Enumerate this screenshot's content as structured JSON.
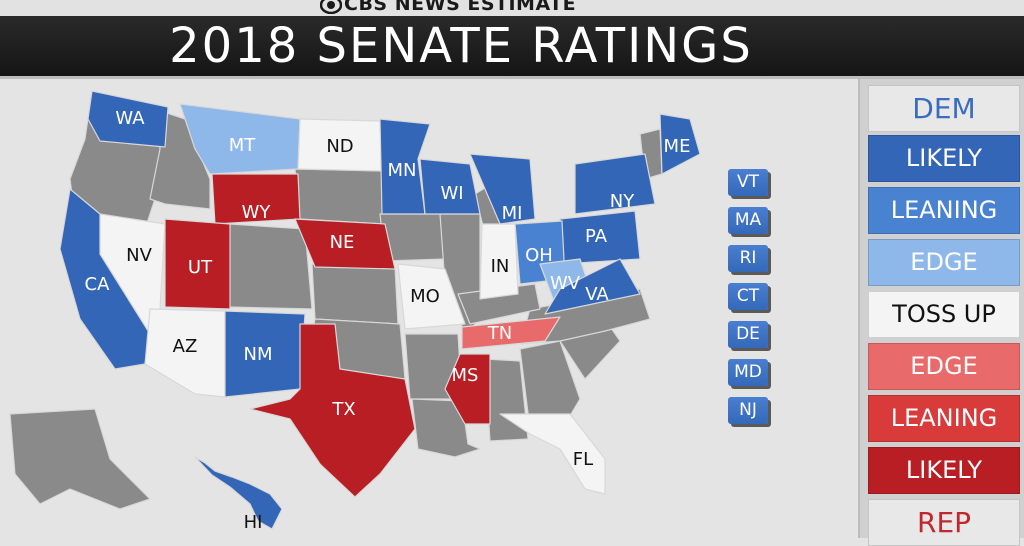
{
  "header": {
    "brand": "CBS NEWS ESTIMATE",
    "brand_icon": "cbs-eye-icon",
    "title": "2018 SENATE RATINGS"
  },
  "colors": {
    "dem_likely": "#3466b8",
    "dem_leaning": "#4a82d2",
    "dem_edge": "#8fb8ea",
    "toss_up": "#f4f4f4",
    "rep_edge": "#e86a6a",
    "rep_leaning": "#d93a3a",
    "rep_likely": "#b81e24",
    "no_race": "#8a8a8a",
    "dem_text": "#3a6cc0",
    "rep_text": "#c0282d"
  },
  "legend": {
    "dem_label": "DEM",
    "rep_label": "REP",
    "items": [
      {
        "label": "LIKELY",
        "rating": "dem_likely"
      },
      {
        "label": "LEANING",
        "rating": "dem_leaning"
      },
      {
        "label": "EDGE",
        "rating": "dem_edge"
      },
      {
        "label": "TOSS UP",
        "rating": "toss_up"
      },
      {
        "label": "EDGE",
        "rating": "rep_edge"
      },
      {
        "label": "LEANING",
        "rating": "rep_leaning"
      },
      {
        "label": "LIKELY",
        "rating": "rep_likely"
      }
    ]
  },
  "states": [
    {
      "abbr": "WA",
      "rating": "dem_likely"
    },
    {
      "abbr": "MT",
      "rating": "dem_edge"
    },
    {
      "abbr": "ND",
      "rating": "toss_up"
    },
    {
      "abbr": "MN",
      "rating": "dem_likely"
    },
    {
      "abbr": "WI",
      "rating": "dem_likely"
    },
    {
      "abbr": "MI",
      "rating": "dem_likely"
    },
    {
      "abbr": "ME",
      "rating": "dem_likely"
    },
    {
      "abbr": "NY",
      "rating": "dem_likely"
    },
    {
      "abbr": "PA",
      "rating": "dem_likely"
    },
    {
      "abbr": "OH",
      "rating": "dem_leaning"
    },
    {
      "abbr": "WV",
      "rating": "dem_edge"
    },
    {
      "abbr": "VA",
      "rating": "dem_likely"
    },
    {
      "abbr": "IN",
      "rating": "toss_up"
    },
    {
      "abbr": "WY",
      "rating": "rep_likely"
    },
    {
      "abbr": "NE",
      "rating": "rep_likely"
    },
    {
      "abbr": "NV",
      "rating": "toss_up"
    },
    {
      "abbr": "UT",
      "rating": "rep_likely"
    },
    {
      "abbr": "CA",
      "rating": "dem_likely"
    },
    {
      "abbr": "AZ",
      "rating": "toss_up"
    },
    {
      "abbr": "NM",
      "rating": "dem_likely"
    },
    {
      "abbr": "TX",
      "rating": "rep_likely"
    },
    {
      "abbr": "MO",
      "rating": "toss_up"
    },
    {
      "abbr": "TN",
      "rating": "rep_edge"
    },
    {
      "abbr": "MS",
      "rating": "rep_likely"
    },
    {
      "abbr": "FL",
      "rating": "toss_up"
    },
    {
      "abbr": "HI",
      "rating": "dem_likely"
    }
  ],
  "small_states": [
    {
      "abbr": "VT",
      "rating": "dem_likely"
    },
    {
      "abbr": "MA",
      "rating": "dem_likely"
    },
    {
      "abbr": "RI",
      "rating": "dem_likely"
    },
    {
      "abbr": "CT",
      "rating": "dem_likely"
    },
    {
      "abbr": "DE",
      "rating": "dem_likely"
    },
    {
      "abbr": "MD",
      "rating": "dem_likely"
    },
    {
      "abbr": "NJ",
      "rating": "dem_likely"
    }
  ]
}
